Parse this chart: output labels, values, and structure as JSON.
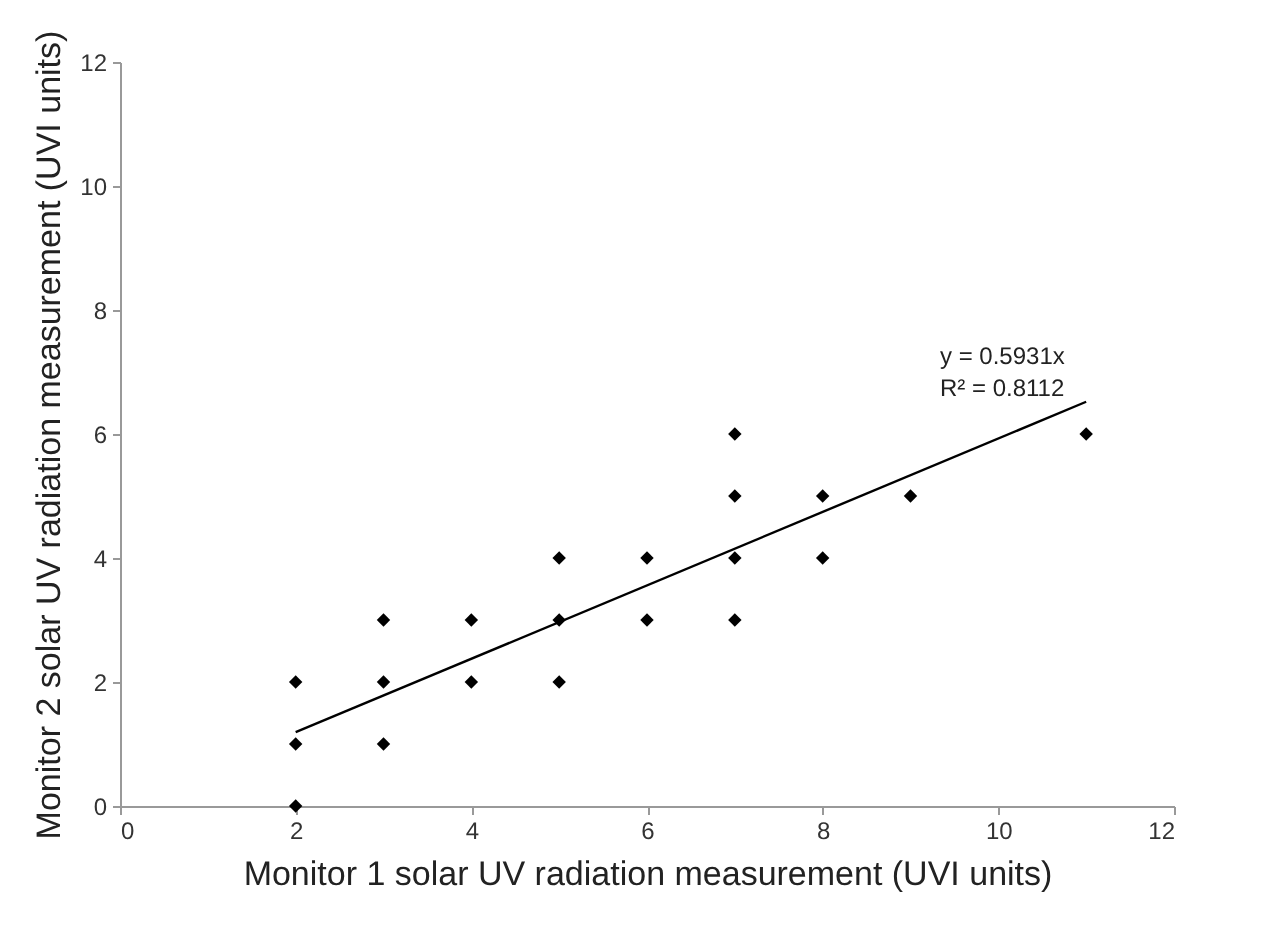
{
  "chart_data": {
    "type": "scatter",
    "xlabel": "Monitor 1 solar UV radiation measurement (UVI units)",
    "ylabel": "Monitor 2 solar UV radiation measurement (UVI units)",
    "xlim": [
      0,
      12
    ],
    "xticks": [
      0,
      2,
      4,
      6,
      8,
      10,
      12
    ],
    "ylim": [
      0,
      12
    ],
    "yticks": [
      0,
      2,
      4,
      6,
      8,
      10,
      12
    ],
    "grid": false,
    "marker": "diamond",
    "series": [
      {
        "color": "#000000",
        "x": [
          2,
          2,
          2,
          3,
          3,
          3,
          4,
          4,
          5,
          5,
          5,
          6,
          6,
          7,
          7,
          7,
          7,
          8,
          8,
          9,
          11
        ],
        "values": [
          0,
          1,
          2,
          1,
          2,
          3,
          2,
          3,
          2,
          3,
          4,
          3,
          4,
          3,
          4,
          5,
          6,
          4,
          5,
          5,
          6
        ]
      },
      {
        "type": "line",
        "color": "#000000",
        "marker": "none",
        "line_style": "solid",
        "x": [
          2,
          11
        ],
        "values": [
          1.19,
          6.52
        ]
      }
    ],
    "annotations": [
      "y = 0.5931x",
      "R² = 0.8112"
    ]
  }
}
